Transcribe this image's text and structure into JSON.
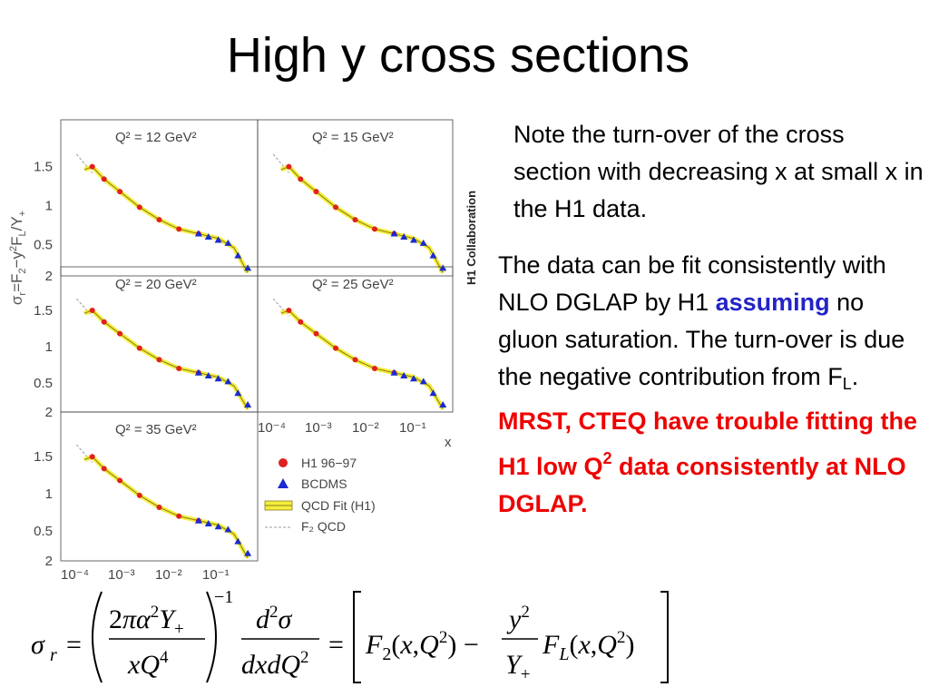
{
  "slide": {
    "title": "High y cross sections"
  },
  "notes": {
    "note1": "Note the turn-over of the cross section with decreasing x at small x in the H1 data.",
    "note2": {
      "part1": "The data can be fit consistently with NLO DGLAP by H1 ",
      "assuming": "assuming",
      "part2": " no gluon saturation.  The turn-over is due the negative contribution from F",
      "sub_L": "L",
      "period": ". ",
      "red_text": "MRST, CTEQ have trouble fitting the H1 low Q",
      "red_sup": "2",
      "red_tail": " data consistently at NLO DGLAP."
    }
  },
  "figure": {
    "ylabel": "σr=F2−y2FL/Y+",
    "collaboration": "H1 Collaboration",
    "x_label": "x",
    "panel_labels": [
      "Q² = 12 GeV²",
      "Q² = 15 GeV²",
      "Q² = 20 GeV²",
      "Q² = 25 GeV²",
      "Q² = 35 GeV²"
    ],
    "y_ticks": [
      "0.5",
      "1",
      "1.5",
      "2"
    ],
    "x_ticks": [
      "10⁻⁴",
      "10⁻³",
      "10⁻²",
      "10⁻¹"
    ],
    "legend": [
      "H1 96−97",
      "BCDMS",
      "QCD Fit (H1)",
      "F₂ QCD"
    ],
    "colors": {
      "h1": "#e02020",
      "bcdms": "#1a2bd0",
      "fit_band": "#f4ef3a",
      "fit_line": "#8a7a20"
    }
  },
  "formula": {
    "sigma": "σ",
    "sub_r": "r",
    "eq": "=",
    "num1": "2πα²Y₊",
    "den1": "xQ⁴",
    "exp": "−1",
    "num2": "d²σ",
    "den2": "dxdQ²",
    "F2": "F₂(x,Q²)",
    "minus": "−",
    "yY": "y²/Y₊",
    "FL": "F_L(x,Q²)"
  }
}
